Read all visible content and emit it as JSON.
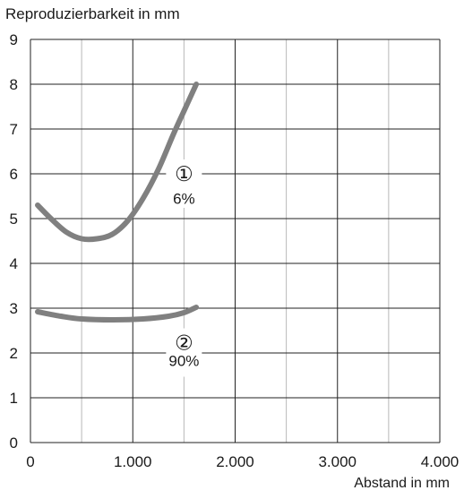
{
  "chart_data": {
    "type": "line",
    "ylabel": "Reproduzierbarkeit in mm",
    "xlabel": "Abstand in mm",
    "xlim": [
      0,
      4000
    ],
    "ylim": [
      0,
      9
    ],
    "x_ticks": [
      0,
      1000,
      2000,
      3000,
      4000
    ],
    "x_tick_labels": [
      "0",
      "1.000",
      "2.000",
      "3.000",
      "4.000"
    ],
    "y_ticks": [
      0,
      1,
      2,
      3,
      4,
      5,
      6,
      7,
      8,
      9
    ],
    "y_tick_labels": [
      "0",
      "1",
      "2",
      "3",
      "4",
      "5",
      "6",
      "7",
      "8",
      "9"
    ],
    "x_minor_gridlines": [
      500,
      1500,
      2500,
      3500
    ],
    "grid": true,
    "series_color": "#808080",
    "series": [
      {
        "marker": "①",
        "label": "6%",
        "points": [
          [
            70,
            5.3
          ],
          [
            200,
            5.0
          ],
          [
            350,
            4.7
          ],
          [
            500,
            4.55
          ],
          [
            650,
            4.55
          ],
          [
            800,
            4.65
          ],
          [
            950,
            4.95
          ],
          [
            1100,
            5.45
          ],
          [
            1250,
            6.1
          ],
          [
            1400,
            6.9
          ],
          [
            1520,
            7.5
          ],
          [
            1620,
            8.0
          ]
        ]
      },
      {
        "marker": "②",
        "label": "90%",
        "points": [
          [
            70,
            2.92
          ],
          [
            300,
            2.82
          ],
          [
            500,
            2.76
          ],
          [
            800,
            2.74
          ],
          [
            1100,
            2.76
          ],
          [
            1350,
            2.82
          ],
          [
            1500,
            2.9
          ],
          [
            1620,
            3.02
          ]
        ]
      }
    ]
  }
}
